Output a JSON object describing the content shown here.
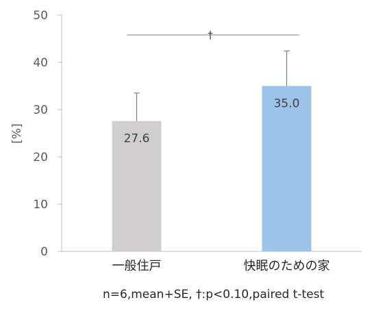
{
  "chart_data": {
    "type": "bar",
    "categories": [
      "一般住戸",
      "快眠のための家"
    ],
    "values": [
      27.6,
      35.0
    ],
    "error_se": [
      5.9,
      7.4
    ],
    "data_labels": [
      "27.6",
      "35.0"
    ],
    "colors": [
      "#d0cece",
      "#9dc3e6"
    ],
    "ylabel": "[%]",
    "ylim": [
      0,
      50
    ],
    "yticks": [
      0,
      10,
      20,
      30,
      40,
      50
    ],
    "grid": false,
    "significance": {
      "between": [
        0,
        1
      ],
      "symbol": "†"
    },
    "footnote": "n=6,mean+SE, †:p<0.10,paired t-test"
  }
}
